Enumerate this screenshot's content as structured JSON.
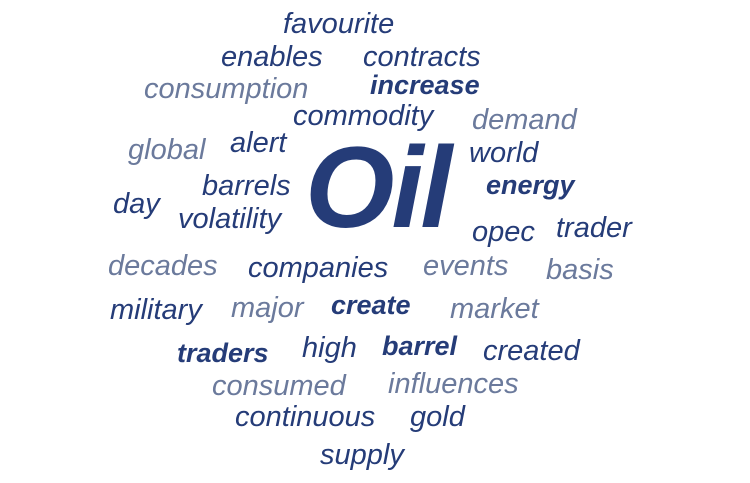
{
  "word_cloud": {
    "colors": {
      "dark": "#253c78",
      "light": "#6b7a9c"
    },
    "words": [
      {
        "text": "favourite",
        "tone": "dark",
        "weight": "normal"
      },
      {
        "text": "enables",
        "tone": "dark",
        "weight": "normal"
      },
      {
        "text": "contracts",
        "tone": "dark",
        "weight": "normal"
      },
      {
        "text": "consumption",
        "tone": "light",
        "weight": "normal"
      },
      {
        "text": "increase",
        "tone": "dark",
        "weight": "bold"
      },
      {
        "text": "commodity",
        "tone": "dark",
        "weight": "normal"
      },
      {
        "text": "demand",
        "tone": "light",
        "weight": "normal"
      },
      {
        "text": "global",
        "tone": "light",
        "weight": "normal"
      },
      {
        "text": "alert",
        "tone": "dark",
        "weight": "normal"
      },
      {
        "text": "world",
        "tone": "dark",
        "weight": "normal"
      },
      {
        "text": "Oil",
        "tone": "dark",
        "weight": "bold"
      },
      {
        "text": "energy",
        "tone": "dark",
        "weight": "bold"
      },
      {
        "text": "barrels",
        "tone": "dark",
        "weight": "normal"
      },
      {
        "text": "day",
        "tone": "dark",
        "weight": "normal"
      },
      {
        "text": "volatility",
        "tone": "dark",
        "weight": "normal"
      },
      {
        "text": "opec",
        "tone": "dark",
        "weight": "normal"
      },
      {
        "text": "trader",
        "tone": "dark",
        "weight": "normal"
      },
      {
        "text": "decades",
        "tone": "light",
        "weight": "normal"
      },
      {
        "text": "companies",
        "tone": "dark",
        "weight": "normal"
      },
      {
        "text": "events",
        "tone": "light",
        "weight": "normal"
      },
      {
        "text": "basis",
        "tone": "light",
        "weight": "normal"
      },
      {
        "text": "military",
        "tone": "dark",
        "weight": "normal"
      },
      {
        "text": "major",
        "tone": "light",
        "weight": "normal"
      },
      {
        "text": "create",
        "tone": "dark",
        "weight": "bold"
      },
      {
        "text": "market",
        "tone": "light",
        "weight": "normal"
      },
      {
        "text": "traders",
        "tone": "dark",
        "weight": "bold"
      },
      {
        "text": "high",
        "tone": "dark",
        "weight": "normal"
      },
      {
        "text": "barrel",
        "tone": "dark",
        "weight": "bold"
      },
      {
        "text": "created",
        "tone": "dark",
        "weight": "normal"
      },
      {
        "text": "consumed",
        "tone": "light",
        "weight": "normal"
      },
      {
        "text": "influences",
        "tone": "light",
        "weight": "normal"
      },
      {
        "text": "continuous",
        "tone": "dark",
        "weight": "normal"
      },
      {
        "text": "gold",
        "tone": "dark",
        "weight": "normal"
      },
      {
        "text": "supply",
        "tone": "dark",
        "weight": "normal"
      }
    ]
  }
}
